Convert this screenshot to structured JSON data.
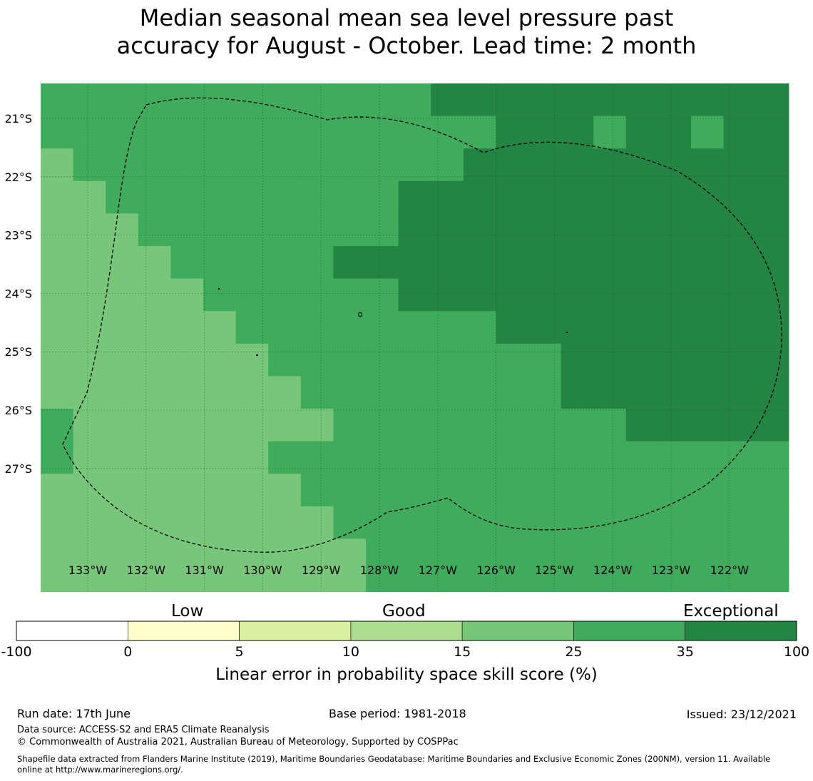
{
  "title": {
    "line1": "Median seasonal mean sea level pressure past",
    "line2": "accuracy for August - October. Lead time: 2 month"
  },
  "map": {
    "lat_labels": [
      "21°S",
      "22°S",
      "23°S",
      "24°S",
      "25°S",
      "26°S",
      "27°S"
    ],
    "lon_labels": [
      "133°W",
      "132°W",
      "131°W",
      "130°W",
      "129°W",
      "128°W",
      "127°W",
      "126°W",
      "125°W",
      "124°W",
      "123°W",
      "122°W"
    ],
    "class_colors": {
      "1": "#78c679",
      "2": "#41ab5d",
      "3": "#238443"
    },
    "grid_classes": [
      [
        2,
        2,
        2,
        2,
        2,
        2,
        2,
        2,
        2,
        2,
        2,
        2,
        3,
        3,
        3,
        3,
        3,
        3,
        3,
        3,
        3,
        3,
        3
      ],
      [
        2,
        2,
        2,
        2,
        2,
        2,
        2,
        2,
        2,
        2,
        2,
        2,
        2,
        2,
        3,
        3,
        3,
        2,
        3,
        3,
        2,
        3,
        3
      ],
      [
        1,
        2,
        2,
        2,
        2,
        2,
        2,
        2,
        2,
        2,
        2,
        2,
        2,
        3,
        3,
        3,
        3,
        3,
        3,
        3,
        3,
        3,
        3
      ],
      [
        1,
        1,
        2,
        2,
        2,
        2,
        2,
        2,
        2,
        2,
        2,
        3,
        3,
        3,
        3,
        3,
        3,
        3,
        3,
        3,
        3,
        3,
        3
      ],
      [
        1,
        1,
        1,
        2,
        2,
        2,
        2,
        2,
        2,
        2,
        2,
        3,
        3,
        3,
        3,
        3,
        3,
        3,
        3,
        3,
        3,
        3,
        3
      ],
      [
        1,
        1,
        1,
        1,
        2,
        2,
        2,
        2,
        2,
        3,
        3,
        3,
        3,
        3,
        3,
        3,
        3,
        3,
        3,
        3,
        3,
        3,
        3
      ],
      [
        1,
        1,
        1,
        1,
        1,
        2,
        2,
        2,
        2,
        2,
        2,
        3,
        3,
        3,
        3,
        3,
        3,
        3,
        3,
        3,
        3,
        3,
        3
      ],
      [
        1,
        1,
        1,
        1,
        1,
        1,
        2,
        2,
        2,
        2,
        2,
        2,
        2,
        2,
        3,
        3,
        3,
        3,
        3,
        3,
        3,
        3,
        3
      ],
      [
        1,
        1,
        1,
        1,
        1,
        1,
        1,
        2,
        2,
        2,
        2,
        2,
        2,
        2,
        2,
        2,
        3,
        3,
        3,
        3,
        3,
        3,
        3
      ],
      [
        1,
        1,
        1,
        1,
        1,
        1,
        1,
        1,
        2,
        2,
        2,
        2,
        2,
        2,
        2,
        2,
        3,
        3,
        3,
        3,
        3,
        3,
        3
      ],
      [
        2,
        1,
        1,
        1,
        1,
        1,
        1,
        1,
        1,
        2,
        2,
        2,
        2,
        2,
        2,
        2,
        2,
        2,
        3,
        3,
        3,
        3,
        3
      ],
      [
        2,
        1,
        1,
        1,
        1,
        1,
        1,
        2,
        2,
        2,
        2,
        2,
        2,
        2,
        2,
        2,
        2,
        2,
        2,
        2,
        2,
        2,
        2
      ],
      [
        1,
        1,
        1,
        1,
        1,
        1,
        1,
        1,
        2,
        2,
        2,
        2,
        2,
        2,
        2,
        2,
        2,
        2,
        2,
        2,
        2,
        2,
        2
      ],
      [
        1,
        1,
        1,
        1,
        1,
        1,
        1,
        1,
        1,
        2,
        2,
        2,
        2,
        2,
        2,
        2,
        2,
        2,
        2,
        2,
        2,
        2,
        2
      ],
      [
        1,
        1,
        1,
        1,
        1,
        1,
        1,
        1,
        1,
        1,
        2,
        2,
        2,
        2,
        2,
        2,
        2,
        2,
        2,
        2,
        2,
        2,
        2
      ],
      [
        1,
        1,
        1,
        1,
        1,
        1,
        1,
        1,
        1,
        1,
        2,
        2,
        2,
        2,
        2,
        2,
        2,
        2,
        2,
        2,
        2,
        2,
        2
      ]
    ]
  },
  "colorbar": {
    "low_label": "Low",
    "good_label": "Good",
    "exceptional_label": "Exceptional",
    "title": "Linear error in probability space skill score (%)",
    "ticks": [
      "-100",
      "0",
      "5",
      "10",
      "15",
      "25",
      "35",
      "100"
    ],
    "colors": [
      "#ffffff",
      "#ffffcc",
      "#d9f0a3",
      "#addd8e",
      "#78c679",
      "#41ab5d",
      "#238443"
    ]
  },
  "footer": {
    "run_date": "Run date: 17th June",
    "base_period": "Base period: 1981-2018",
    "issued": "Issued: 23/12/2021",
    "data_source": "Data source: ACCESS-S2 and ERA5 Climate Reanalysis",
    "copyright": "© Commonwealth of Australia 2021, Australian Bureau of Meteorology, Supported by COSPPac",
    "shapefile_line1": "Shapefile data extracted from Flanders Marine Institute (2019), Maritime Boundaries Geodatabase: Maritime Boundaries and Exclusive Economic Zones (200NM), version 11. Available",
    "shapefile_line2": "online at http://www.marineregions.org/."
  }
}
